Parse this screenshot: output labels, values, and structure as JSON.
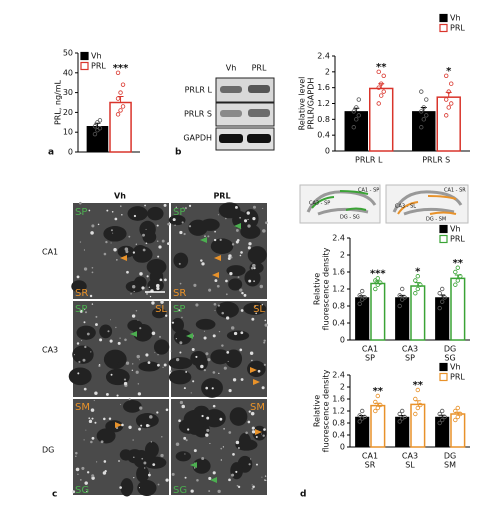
{
  "chart_data": [
    {
      "type": "bar",
      "ylabel": [
        "PRL, ng/mL"
      ],
      "categories": [
        null
      ],
      "ylim": [
        0,
        50
      ],
      "yticks": [
        0,
        10,
        20,
        30,
        40,
        50
      ],
      "legend": "top-left",
      "series": [
        {
          "name": "Vh",
          "color": "#000000",
          "style": "filled",
          "values": [
            13
          ],
          "errors": [
            1.5
          ],
          "points": [
            [
              9,
              11,
              12,
              13,
              15,
              16
            ]
          ]
        },
        {
          "name": "PRL",
          "color": "#d9342b",
          "style": "outline",
          "values": [
            25
          ],
          "errors": [
            3
          ],
          "points": [
            [
              19,
              21,
              23,
              27,
              30,
              34,
              40
            ]
          ]
        }
      ],
      "annotations": [
        "***"
      ]
    },
    {
      "type": "bar",
      "ylabel": [
        "Relative level",
        "PRLR/GAPDH"
      ],
      "categories": [
        [
          "PRLR L"
        ],
        [
          "PRLR S"
        ]
      ],
      "ylim": [
        0,
        2.4
      ],
      "yticks": [
        0,
        0.4,
        0.8,
        1.2,
        1.6,
        2.0,
        2.4
      ],
      "legend": "top-right",
      "series": [
        {
          "name": "Vh",
          "color": "#000000",
          "style": "filled",
          "values": [
            1.0,
            1.0
          ],
          "errors": [
            0.08,
            0.1
          ],
          "points": [
            [
              0.6,
              0.8,
              0.9,
              1.0,
              1.1,
              1.3
            ],
            [
              0.6,
              0.8,
              0.9,
              1.0,
              1.1,
              1.3,
              1.5
            ]
          ]
        },
        {
          "name": "PRL",
          "color": "#d9342b",
          "style": "outline",
          "values": [
            1.58,
            1.36
          ],
          "errors": [
            0.12,
            0.12
          ],
          "points": [
            [
              1.2,
              1.4,
              1.5,
              1.6,
              1.7,
              1.9,
              2.0
            ],
            [
              0.9,
              1.1,
              1.2,
              1.3,
              1.5,
              1.7,
              1.9
            ]
          ]
        }
      ],
      "annotations": [
        "**",
        "*"
      ]
    },
    {
      "type": "bar",
      "ylabel": [
        "Relative",
        "fluorescence density"
      ],
      "categories": [
        [
          "CA1",
          "SP"
        ],
        [
          "CA3",
          "SP"
        ],
        [
          "DG",
          "SG"
        ]
      ],
      "ylim": [
        0,
        2.4
      ],
      "yticks": [
        0,
        0.4,
        0.8,
        1.2,
        1.6,
        2.0,
        2.4
      ],
      "legend": "top-right",
      "series": [
        {
          "name": "Vh",
          "color": "#000000",
          "style": "filled",
          "values": [
            1.0,
            1.0,
            1.0
          ],
          "errors": [
            0.04,
            0.05,
            0.06
          ],
          "points": [
            [
              0.85,
              0.95,
              1.0,
              1.05,
              1.15
            ],
            [
              0.8,
              0.95,
              1.0,
              1.05,
              1.2
            ],
            [
              0.75,
              0.9,
              1.0,
              1.1,
              1.2
            ]
          ]
        },
        {
          "name": "PRL",
          "color": "#3aa335",
          "style": "outline",
          "values": [
            1.33,
            1.27,
            1.45
          ],
          "errors": [
            0.06,
            0.08,
            0.08
          ],
          "points": [
            [
              1.2,
              1.3,
              1.35,
              1.4,
              1.45
            ],
            [
              1.1,
              1.2,
              1.3,
              1.4,
              1.5
            ],
            [
              1.3,
              1.4,
              1.5,
              1.6,
              1.7
            ]
          ]
        }
      ],
      "annotations": [
        "***",
        "*",
        "**"
      ]
    },
    {
      "type": "bar",
      "ylabel": [
        "Relative",
        "fluorescence density"
      ],
      "categories": [
        [
          "CA1",
          "SR"
        ],
        [
          "CA3",
          "SL"
        ],
        [
          "DG",
          "SM"
        ]
      ],
      "ylim": [
        0,
        2.4
      ],
      "yticks": [
        0,
        0.4,
        0.8,
        1.2,
        1.6,
        2.0,
        2.4
      ],
      "legend": "top-right",
      "series": [
        {
          "name": "Vh",
          "color": "#000000",
          "style": "filled",
          "values": [
            1.0,
            1.0,
            1.0
          ],
          "errors": [
            0.05,
            0.05,
            0.06
          ],
          "points": [
            [
              0.85,
              0.95,
              1.0,
              1.05,
              1.2
            ],
            [
              0.85,
              0.95,
              1.0,
              1.1,
              1.2
            ],
            [
              0.8,
              0.9,
              1.0,
              1.1,
              1.2
            ]
          ]
        },
        {
          "name": "PRL",
          "color": "#e8922a",
          "style": "outline",
          "values": [
            1.38,
            1.42,
            1.1
          ],
          "errors": [
            0.08,
            0.12,
            0.06
          ],
          "points": [
            [
              1.2,
              1.3,
              1.4,
              1.5,
              1.7
            ],
            [
              1.1,
              1.3,
              1.4,
              1.6,
              1.9
            ],
            [
              0.9,
              1.0,
              1.1,
              1.2,
              1.3
            ]
          ]
        }
      ],
      "annotations": [
        "**",
        "**",
        null
      ]
    }
  ],
  "panel_labels": [
    "a",
    "b",
    "c",
    "d"
  ],
  "blot": {
    "lanes": [
      "Vh",
      "PRL"
    ],
    "rows": [
      "PRLR L",
      "PRLR S",
      "GAPDH"
    ]
  },
  "micrograph": {
    "columns": [
      "Vh",
      "PRL"
    ],
    "rows": [
      "CA1",
      "CA3",
      "DG"
    ],
    "regions": [
      "SP",
      "SR",
      "SL",
      "SM",
      "SG"
    ]
  },
  "diagrams": [
    [
      "CA1 - SP",
      "CA3 - SP",
      "DG - SG"
    ],
    [
      "CA1 - SR",
      "CA3 - SL",
      "DG - SM"
    ]
  ]
}
